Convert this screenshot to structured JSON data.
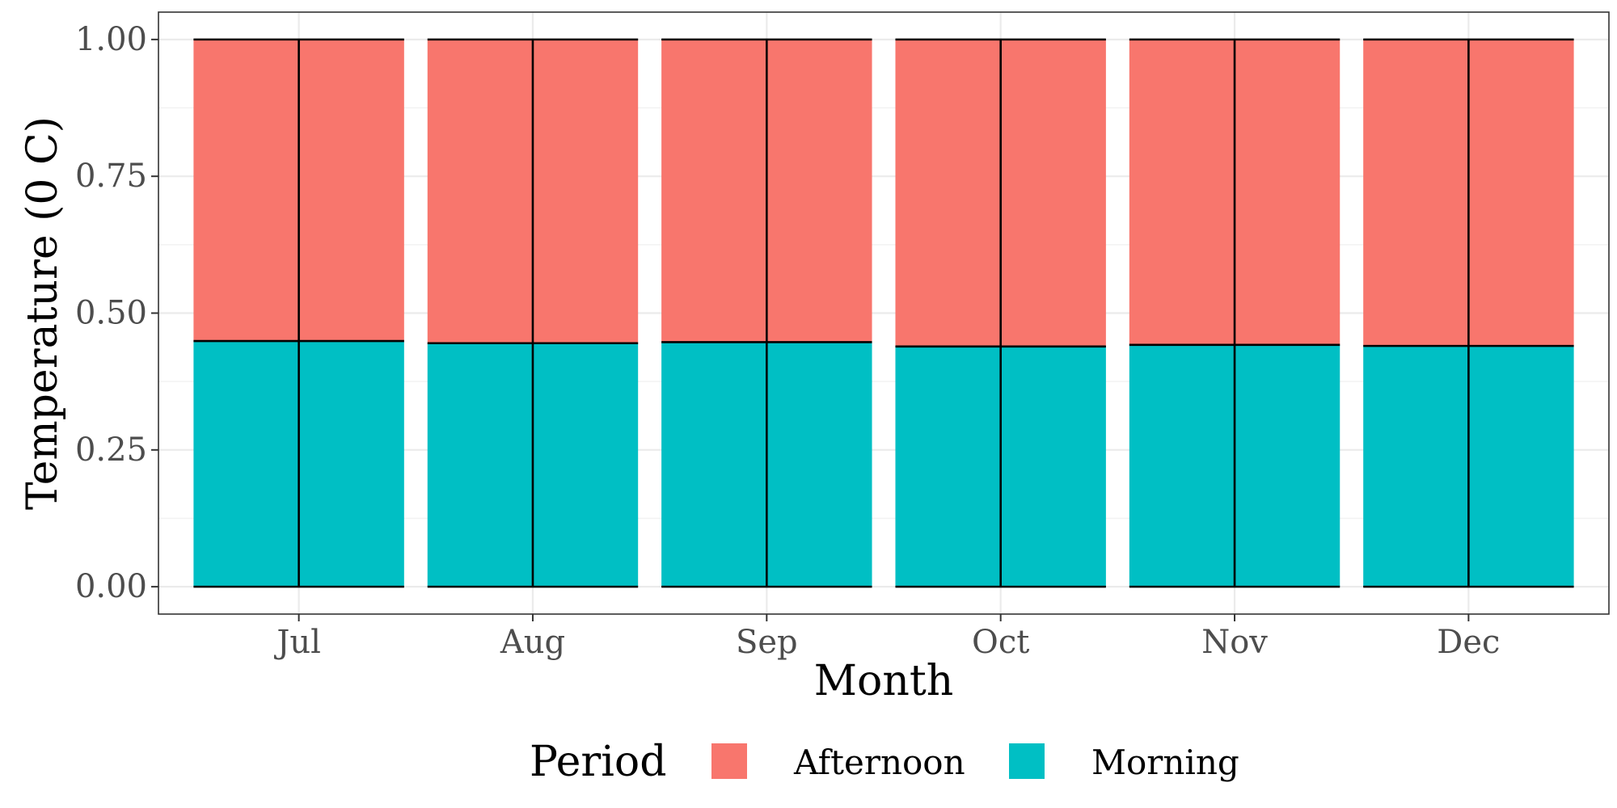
{
  "chart_data": {
    "type": "bar",
    "stacked": true,
    "categories": [
      "Jul",
      "Aug",
      "Sep",
      "Oct",
      "Nov",
      "Dec"
    ],
    "series": [
      {
        "name": "Morning",
        "color": "#00BFC4",
        "values": [
          0.449,
          0.445,
          0.447,
          0.439,
          0.442,
          0.44
        ]
      },
      {
        "name": "Afternoon",
        "color": "#F8766D",
        "values": [
          0.551,
          0.555,
          0.553,
          0.561,
          0.558,
          0.56
        ]
      }
    ],
    "xlabel": "Month",
    "ylabel": "Temperature (0 C)",
    "ylim": [
      -0.05,
      1.05
    ],
    "yticks": [
      "0.00",
      "0.25",
      "0.50",
      "0.75",
      "1.00"
    ],
    "grid": true,
    "legend": {
      "title": "Period",
      "position": "bottom",
      "items": [
        {
          "label": "Afternoon",
          "color": "#F8766D"
        },
        {
          "label": "Morning",
          "color": "#00BFC4"
        }
      ]
    }
  }
}
